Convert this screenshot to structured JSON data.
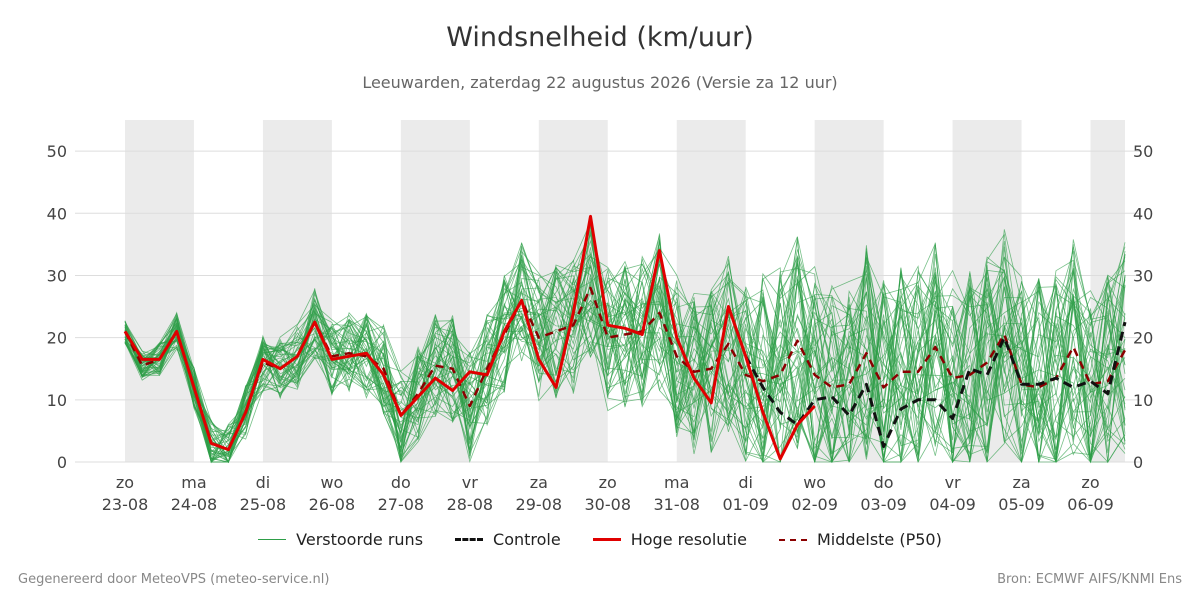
{
  "title": "Windsnelheid (km/uur)",
  "subtitle": "Leeuwarden, zaterdag 22 augustus 2026 (Versie za 12 uur)",
  "footer": {
    "left": "Gegenereerd door MeteoVPS (meteo-service.nl)",
    "right": "Bron: ECMWF AIFS/KNMI Ens"
  },
  "colors": {
    "ensemble": "#2e9e48",
    "control": "#111111",
    "hires": "#e00000",
    "median": "#8b0000",
    "weekend_band": "#ebebeb",
    "grid": "#dddddd"
  },
  "legend": [
    {
      "label": "Verstoorde runs",
      "color": "#2e9e48",
      "style": "thin"
    },
    {
      "label": "Controle",
      "color": "#111111",
      "style": "dashed"
    },
    {
      "label": "Hoge resolutie",
      "color": "#e00000",
      "style": "solid"
    },
    {
      "label": "Middelste (P50)",
      "color": "#8b0000",
      "style": "dashed"
    }
  ],
  "chart_data": {
    "type": "line",
    "title": "Windsnelheid (km/uur)",
    "ylim": [
      0,
      55
    ],
    "yticks": [
      0,
      10,
      20,
      30,
      40,
      50
    ],
    "grid": true,
    "legend_position": "bottom",
    "x_unit": "6-hour steps from 23-08 00:00",
    "x_range": [
      0,
      58
    ],
    "day_ticks": [
      {
        "day": "zo",
        "date": "23-08",
        "x": 0
      },
      {
        "day": "ma",
        "date": "24-08",
        "x": 4
      },
      {
        "day": "di",
        "date": "25-08",
        "x": 8
      },
      {
        "day": "wo",
        "date": "26-08",
        "x": 12
      },
      {
        "day": "do",
        "date": "27-08",
        "x": 16
      },
      {
        "day": "vr",
        "date": "28-08",
        "x": 20
      },
      {
        "day": "za",
        "date": "29-08",
        "x": 24
      },
      {
        "day": "zo",
        "date": "30-08",
        "x": 28
      },
      {
        "day": "ma",
        "date": "31-08",
        "x": 32
      },
      {
        "day": "di",
        "date": "01-09",
        "x": 36
      },
      {
        "day": "wo",
        "date": "02-09",
        "x": 40
      },
      {
        "day": "do",
        "date": "03-09",
        "x": 44
      },
      {
        "day": "vr",
        "date": "04-09",
        "x": 48
      },
      {
        "day": "za",
        "date": "05-09",
        "x": 52
      },
      {
        "day": "zo",
        "date": "06-09",
        "x": 56
      }
    ],
    "shaded_days_x": [
      0,
      8,
      16,
      24,
      32,
      40,
      48,
      56
    ],
    "series": [
      {
        "name": "Hoge resolutie",
        "style": "solid",
        "x": [
          0,
          1,
          2,
          3,
          4,
          5,
          6,
          7,
          8,
          9,
          10,
          11,
          12,
          13,
          14,
          15,
          16,
          17,
          18,
          19,
          20,
          21,
          22,
          23,
          24,
          25,
          26,
          27,
          28,
          29,
          30,
          31,
          32,
          33,
          34,
          35,
          36,
          37,
          38,
          39,
          40
        ],
        "values": [
          21,
          16.5,
          16.5,
          21,
          12,
          3,
          2,
          8,
          16.5,
          15,
          17,
          22.5,
          16.5,
          17,
          17.5,
          14,
          7.5,
          10.5,
          13.5,
          11.5,
          14.5,
          14,
          21,
          26,
          16.5,
          12,
          24,
          39.5,
          22,
          21.5,
          20.5,
          34,
          20,
          13.5,
          9.5,
          25,
          17,
          8,
          0.5,
          6,
          9
        ]
      },
      {
        "name": "Controle",
        "style": "dashed",
        "x": [
          36,
          37,
          38,
          39,
          40,
          41,
          42,
          43,
          44,
          45,
          46,
          47,
          48,
          49,
          50,
          51,
          52,
          53,
          54,
          55,
          56,
          57,
          58
        ],
        "values": [
          17,
          12,
          8,
          6,
          10,
          10.5,
          7.5,
          12.5,
          2.5,
          8.5,
          10,
          10,
          7,
          15,
          14,
          20,
          12.5,
          12.5,
          13.5,
          12,
          13,
          11,
          22.5
        ]
      },
      {
        "name": "Middelste (P50)",
        "style": "dashed",
        "x": [
          0,
          1,
          2,
          3,
          4,
          5,
          6,
          7,
          8,
          9,
          10,
          11,
          12,
          13,
          14,
          15,
          16,
          17,
          18,
          19,
          20,
          21,
          22,
          23,
          24,
          25,
          26,
          27,
          28,
          29,
          30,
          31,
          32,
          33,
          34,
          35,
          36,
          37,
          38,
          39,
          40,
          41,
          42,
          43,
          44,
          45,
          46,
          47,
          48,
          49,
          50,
          51,
          52,
          53,
          54,
          55,
          56,
          57,
          58
        ],
        "values": [
          21,
          15.5,
          16.5,
          21,
          12,
          3,
          2,
          8,
          16,
          15,
          17,
          22.5,
          17,
          17.5,
          17,
          15,
          7.5,
          11,
          15.5,
          15,
          9,
          15,
          20.5,
          26,
          20,
          21,
          22,
          28,
          20,
          20.5,
          21,
          24,
          17,
          14.5,
          15,
          19,
          14,
          13,
          14,
          19.5,
          14,
          12,
          12.5,
          17.5,
          12,
          14.5,
          14.5,
          18.5,
          13.5,
          14,
          16,
          20.5,
          12.5,
          12,
          13.5,
          18.5,
          12.5,
          13,
          18
        ]
      }
    ]
  }
}
